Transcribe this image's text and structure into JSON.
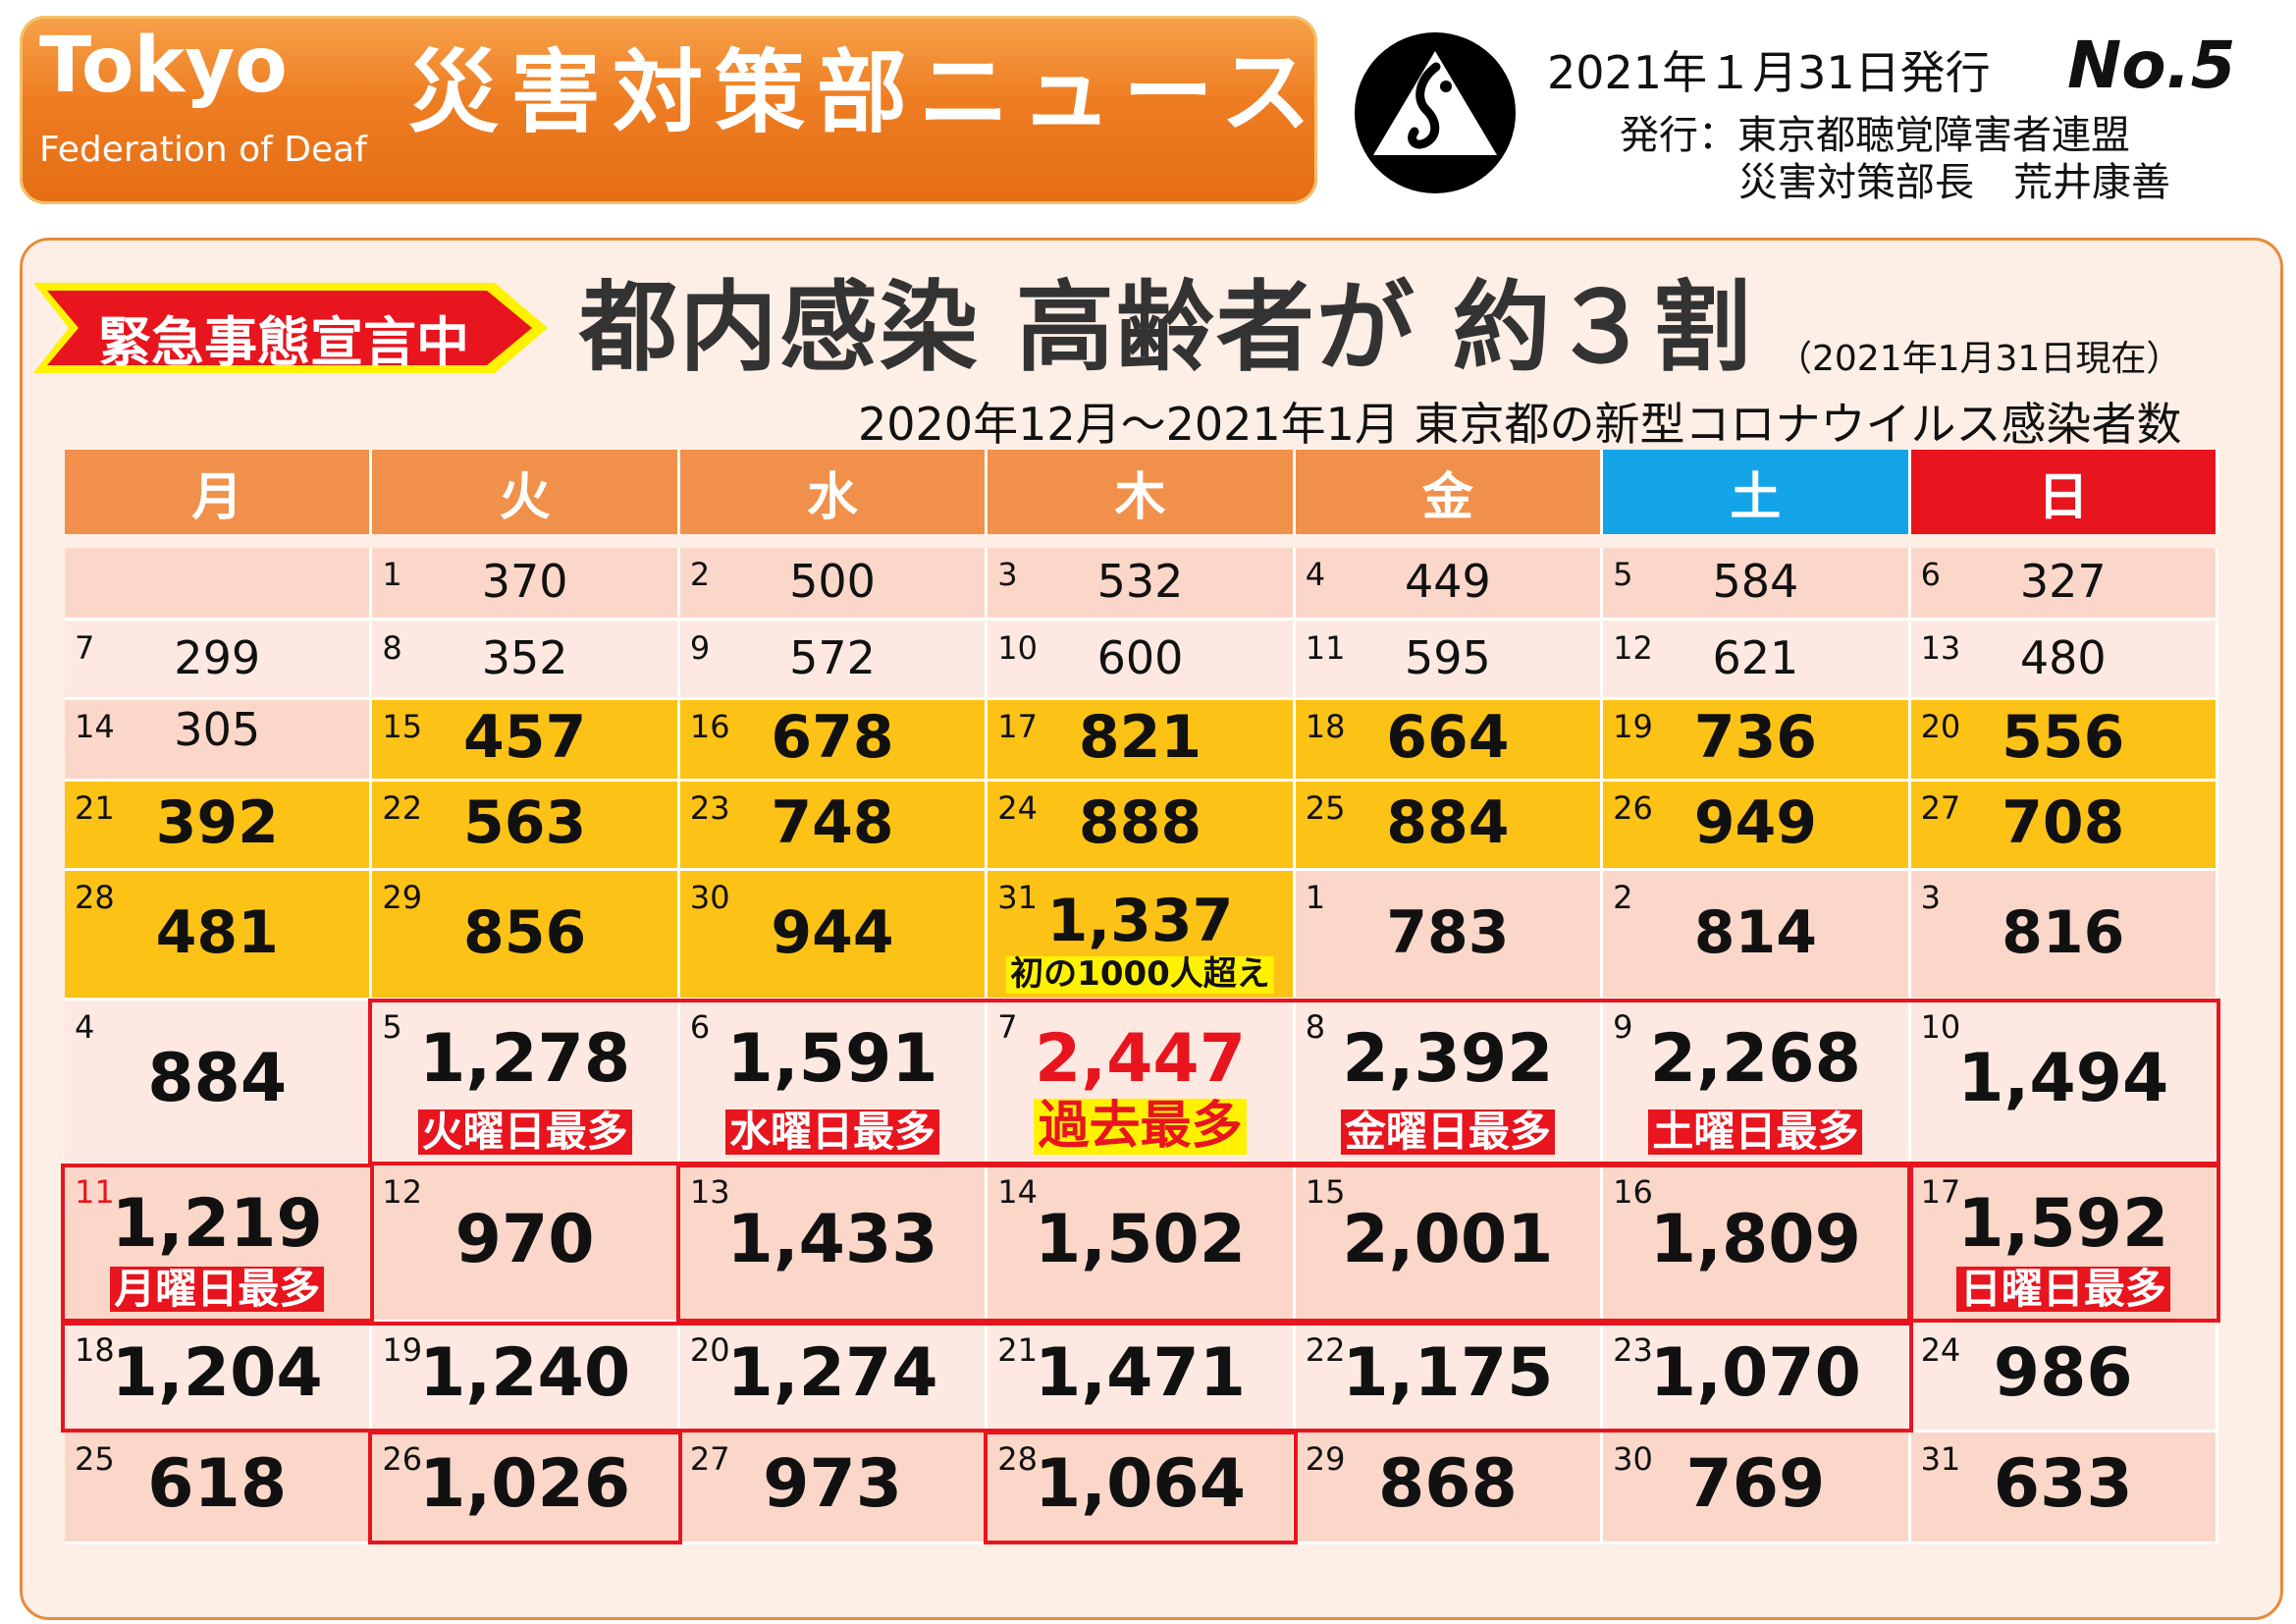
{
  "header": {
    "brand_title": "Tokyo",
    "brand_sub": "Federation of Deaf",
    "news_title": "災害対策部ニュース",
    "issue_date": "2021年１月31日発行",
    "issue_no": "No.5",
    "publisher_line1": "発行：東京都聴覚障害者連盟",
    "publisher_line2": "災害対策部長　荒井康善"
  },
  "main": {
    "emergency_label": "緊急事態宣言中",
    "headline": "都内感染 高齢者が 約３割",
    "as_of": "（2021年1月31日現在）",
    "subtitle": "2020年12月～2021年1月  東京都の新型コロナウイルス感染者数"
  },
  "calendar": {
    "weekdays": [
      "月",
      "火",
      "水",
      "木",
      "金",
      "土",
      "日"
    ],
    "weekday_colors": [
      "#f1904a",
      "#f1904a",
      "#f1904a",
      "#f1904a",
      "#f1904a",
      "#14a5e8",
      "#e8141e"
    ],
    "weeks": [
      [
        {
          "day": "",
          "value": ""
        },
        {
          "day": "1",
          "value": "370"
        },
        {
          "day": "2",
          "value": "500"
        },
        {
          "day": "3",
          "value": "532"
        },
        {
          "day": "4",
          "value": "449"
        },
        {
          "day": "5",
          "value": "584"
        },
        {
          "day": "6",
          "value": "327"
        }
      ],
      [
        {
          "day": "7",
          "value": "299"
        },
        {
          "day": "8",
          "value": "352"
        },
        {
          "day": "9",
          "value": "572"
        },
        {
          "day": "10",
          "value": "600"
        },
        {
          "day": "11",
          "value": "595"
        },
        {
          "day": "12",
          "value": "621"
        },
        {
          "day": "13",
          "value": "480"
        }
      ],
      [
        {
          "day": "14",
          "value": "305"
        },
        {
          "day": "15",
          "value": "457"
        },
        {
          "day": "16",
          "value": "678"
        },
        {
          "day": "17",
          "value": "821"
        },
        {
          "day": "18",
          "value": "664"
        },
        {
          "day": "19",
          "value": "736"
        },
        {
          "day": "20",
          "value": "556"
        }
      ],
      [
        {
          "day": "21",
          "value": "392"
        },
        {
          "day": "22",
          "value": "563"
        },
        {
          "day": "23",
          "value": "748"
        },
        {
          "day": "24",
          "value": "888"
        },
        {
          "day": "25",
          "value": "884"
        },
        {
          "day": "26",
          "value": "949"
        },
        {
          "day": "27",
          "value": "708"
        }
      ],
      [
        {
          "day": "28",
          "value": "481"
        },
        {
          "day": "29",
          "value": "856"
        },
        {
          "day": "30",
          "value": "944"
        },
        {
          "day": "31",
          "value": "1,337",
          "note": "初の1000人超え"
        },
        {
          "day": "1",
          "value": "783"
        },
        {
          "day": "2",
          "value": "814"
        },
        {
          "day": "3",
          "value": "816"
        }
      ],
      [
        {
          "day": "4",
          "value": "884"
        },
        {
          "day": "5",
          "value": "1,278",
          "tag": "火曜日最多"
        },
        {
          "day": "6",
          "value": "1,591",
          "tag": "水曜日最多"
        },
        {
          "day": "7",
          "value": "2,447",
          "tag": "過去最多"
        },
        {
          "day": "8",
          "value": "2,392",
          "tag": "金曜日最多"
        },
        {
          "day": "9",
          "value": "2,268",
          "tag": "土曜日最多"
        },
        {
          "day": "10",
          "value": "1,494"
        }
      ],
      [
        {
          "day": "11",
          "value": "1,219",
          "tag": "月曜日最多"
        },
        {
          "day": "12",
          "value": "970"
        },
        {
          "day": "13",
          "value": "1,433"
        },
        {
          "day": "14",
          "value": "1,502"
        },
        {
          "day": "15",
          "value": "2,001"
        },
        {
          "day": "16",
          "value": "1,809"
        },
        {
          "day": "17",
          "value": "1,592",
          "tag": "日曜日最多"
        }
      ],
      [
        {
          "day": "18",
          "value": "1,204"
        },
        {
          "day": "19",
          "value": "1,240"
        },
        {
          "day": "20",
          "value": "1,274"
        },
        {
          "day": "21",
          "value": "1,471"
        },
        {
          "day": "22",
          "value": "1,175"
        },
        {
          "day": "23",
          "value": "1,070"
        },
        {
          "day": "24",
          "value": "986"
        }
      ],
      [
        {
          "day": "25",
          "value": "618"
        },
        {
          "day": "26",
          "value": "1,026"
        },
        {
          "day": "27",
          "value": "973"
        },
        {
          "day": "28",
          "value": "1,064"
        },
        {
          "day": "29",
          "value": "868"
        },
        {
          "day": "30",
          "value": "769"
        },
        {
          "day": "31",
          "value": "633"
        }
      ]
    ]
  },
  "colors": {
    "accent_orange": "#ee7d22",
    "highlight_yellow": "#fdc216",
    "record_red": "#e8141e"
  }
}
